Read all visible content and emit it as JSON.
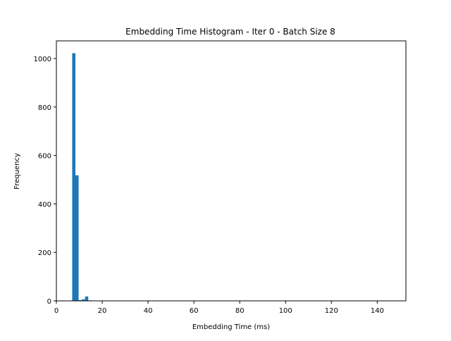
{
  "chart_data": {
    "type": "bar",
    "subtype": "histogram",
    "title": "Embedding Time Histogram - Iter 0 - Batch Size 8",
    "xlabel": "Embedding Time (ms)",
    "ylabel": "Frequency",
    "xlim": [
      0,
      152.5
    ],
    "ylim": [
      0,
      1073
    ],
    "xticks": [
      0,
      20,
      40,
      60,
      80,
      100,
      120,
      140
    ],
    "yticks": [
      0,
      200,
      400,
      600,
      800,
      1000
    ],
    "grid": false,
    "legend": "none",
    "bar_color": "#1f77b4",
    "bins": [
      {
        "x0": 6.9,
        "x1": 8.3,
        "count": 1022
      },
      {
        "x0": 8.3,
        "x1": 9.7,
        "count": 518
      },
      {
        "x0": 9.7,
        "x1": 11.1,
        "count": 3
      },
      {
        "x0": 11.1,
        "x1": 12.5,
        "count": 6
      },
      {
        "x0": 12.5,
        "x1": 13.9,
        "count": 18
      },
      {
        "x0": 13.9,
        "x1": 15.3,
        "count": 2
      },
      {
        "x0": 15.3,
        "x1": 16.7,
        "count": 1
      },
      {
        "x0": 144.7,
        "x1": 146.1,
        "count": 1
      }
    ]
  }
}
